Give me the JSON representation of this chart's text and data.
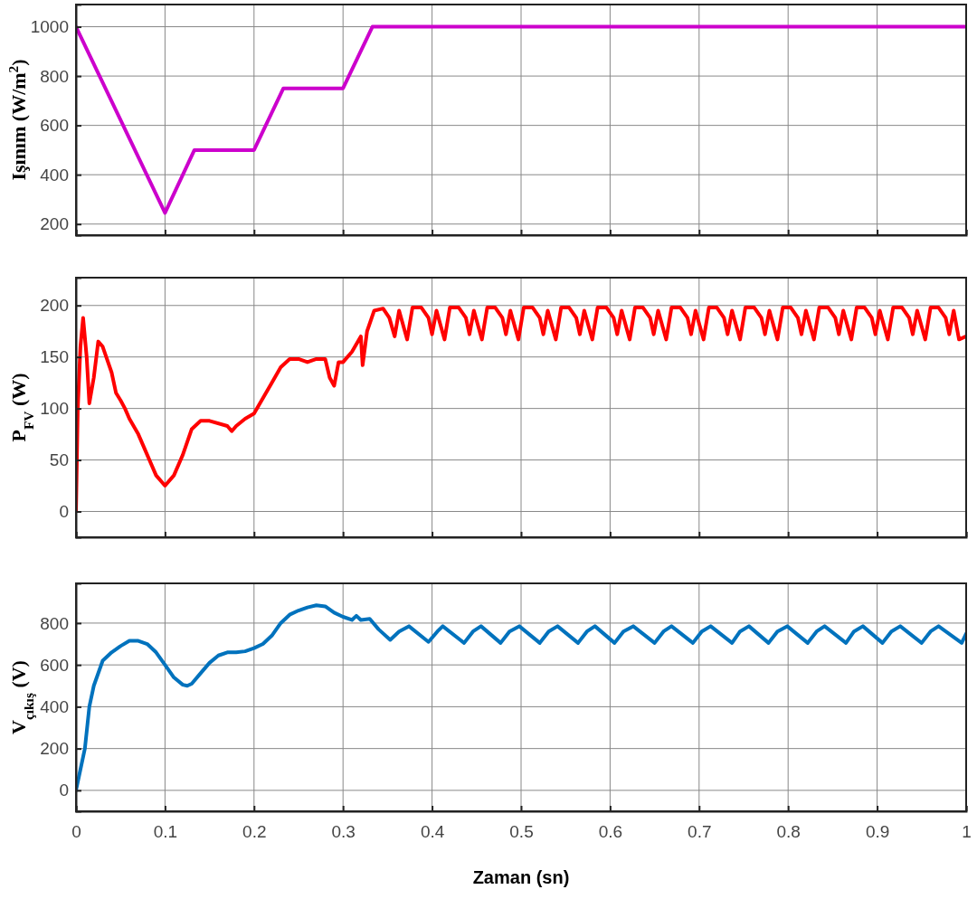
{
  "chart_data": [
    {
      "type": "line",
      "ylabel": "Işınım (W/m$^{2}$)",
      "xlim": [
        0,
        1
      ],
      "xticks": [
        0,
        0.1,
        0.2,
        0.3,
        0.4,
        0.5,
        0.6,
        0.7,
        0.8,
        0.9,
        1
      ],
      "ylim": [
        155,
        1090
      ],
      "yticks": [
        200,
        400,
        600,
        800,
        1000
      ],
      "grid": true,
      "tick_labels": "y",
      "series": [
        {
          "color": "#cc00cc",
          "x": [
            0,
            0.1,
            0.133,
            0.2,
            0.233,
            0.3,
            0.333,
            1
          ],
          "values": [
            1000,
            245,
            500,
            500,
            750,
            750,
            1000,
            1000
          ]
        }
      ]
    },
    {
      "type": "line",
      "ylabel": "P$_{FV}$ (W)",
      "xlim": [
        0,
        1
      ],
      "xticks": [
        0,
        0.1,
        0.2,
        0.3,
        0.4,
        0.5,
        0.6,
        0.7,
        0.8,
        0.9,
        1
      ],
      "ylim": [
        -25,
        227
      ],
      "yticks": [
        0,
        50,
        100,
        150,
        200
      ],
      "grid": true,
      "tick_labels": "y",
      "series": [
        {
          "color": "#ff0000",
          "x": [
            0,
            0.002,
            0.005,
            0.008,
            0.012,
            0.015,
            0.02,
            0.025,
            0.03,
            0.04,
            0.045,
            0.05,
            0.055,
            0.06,
            0.07,
            0.08,
            0.09,
            0.1,
            0.11,
            0.12,
            0.13,
            0.14,
            0.15,
            0.17,
            0.175,
            0.18,
            0.19,
            0.2,
            0.21,
            0.22,
            0.23,
            0.24,
            0.25,
            0.26,
            0.27,
            0.28,
            0.285,
            0.29,
            0.295,
            0.3,
            0.31,
            0.32,
            0.322,
            0.327,
            0.335,
            0.345,
            0.352,
            0.358,
            0.363,
            0.372,
            0.378,
            0.388,
            0.396,
            0.4,
            0.405,
            0.414,
            0.42,
            0.43,
            0.438,
            0.442,
            0.447,
            0.456,
            0.462,
            0.471,
            0.479,
            0.483,
            0.488,
            0.497,
            0.503,
            0.513,
            0.521,
            0.525,
            0.53,
            0.539,
            0.545,
            0.554,
            0.562,
            0.566,
            0.571,
            0.58,
            0.586,
            0.596,
            0.604,
            0.608,
            0.613,
            0.622,
            0.628,
            0.637,
            0.645,
            0.649,
            0.654,
            0.663,
            0.669,
            0.679,
            0.687,
            0.691,
            0.696,
            0.705,
            0.711,
            0.72,
            0.728,
            0.732,
            0.737,
            0.746,
            0.752,
            0.762,
            0.77,
            0.774,
            0.779,
            0.788,
            0.794,
            0.803,
            0.811,
            0.815,
            0.82,
            0.829,
            0.835,
            0.845,
            0.853,
            0.857,
            0.862,
            0.871,
            0.877,
            0.886,
            0.894,
            0.898,
            0.903,
            0.912,
            0.918,
            0.928,
            0.936,
            0.94,
            0.945,
            0.954,
            0.96,
            0.969,
            0.977,
            0.981,
            0.986,
            0.992,
            1
          ],
          "values": [
            0,
            100,
            160,
            188,
            150,
            105,
            130,
            165,
            160,
            135,
            115,
            108,
            100,
            90,
            75,
            55,
            35,
            25,
            35,
            55,
            80,
            88,
            88,
            83,
            78,
            83,
            90,
            95,
            110,
            125,
            140,
            148,
            148,
            145,
            148,
            148,
            130,
            122,
            145,
            145,
            155,
            170,
            142,
            175,
            195,
            197,
            188,
            170,
            195,
            167,
            198,
            198,
            188,
            172,
            195,
            167,
            198,
            198,
            188,
            172,
            195,
            167,
            198,
            198,
            188,
            172,
            195,
            167,
            198,
            198,
            188,
            172,
            195,
            167,
            198,
            198,
            188,
            172,
            195,
            167,
            198,
            198,
            188,
            172,
            195,
            167,
            198,
            198,
            188,
            172,
            195,
            167,
            198,
            198,
            188,
            172,
            195,
            167,
            198,
            198,
            188,
            172,
            195,
            167,
            198,
            198,
            188,
            172,
            195,
            167,
            198,
            198,
            188,
            172,
            195,
            167,
            198,
            198,
            188,
            172,
            195,
            167,
            198,
            198,
            188,
            172,
            195,
            167,
            198,
            198,
            188,
            172,
            195,
            167,
            198,
            198,
            188,
            172,
            195,
            167,
            170
          ]
        }
      ]
    },
    {
      "type": "line",
      "ylabel": "V$_{çıkış}$ (V)",
      "xlabel": "Zaman (sn)",
      "xlim": [
        0,
        1
      ],
      "xticks": [
        0,
        0.1,
        0.2,
        0.3,
        0.4,
        0.5,
        0.6,
        0.7,
        0.8,
        0.9,
        1
      ],
      "ylim": [
        -100,
        990
      ],
      "yticks": [
        0,
        200,
        400,
        600,
        800
      ],
      "grid": true,
      "series": [
        {
          "color": "#0072bd",
          "x": [
            0,
            0.005,
            0.01,
            0.015,
            0.02,
            0.03,
            0.04,
            0.05,
            0.06,
            0.07,
            0.08,
            0.09,
            0.1,
            0.11,
            0.12,
            0.125,
            0.13,
            0.14,
            0.15,
            0.16,
            0.17,
            0.18,
            0.19,
            0.2,
            0.21,
            0.22,
            0.23,
            0.24,
            0.25,
            0.26,
            0.27,
            0.28,
            0.29,
            0.3,
            0.31,
            0.315,
            0.32,
            0.33,
            0.34,
            0.353,
            0.363,
            0.374,
            0.396,
            0.406,
            0.412,
            0.436,
            0.446,
            0.455,
            0.477,
            0.487,
            0.498,
            0.521,
            0.531,
            0.541,
            0.564,
            0.574,
            0.583,
            0.605,
            0.615,
            0.626,
            0.65,
            0.66,
            0.669,
            0.693,
            0.703,
            0.713,
            0.737,
            0.746,
            0.756,
            0.778,
            0.788,
            0.799,
            0.822,
            0.832,
            0.841,
            0.865,
            0.874,
            0.884,
            0.906,
            0.916,
            0.926,
            0.95,
            0.96,
            0.969,
            0.995,
            1
          ],
          "values": [
            0,
            100,
            200,
            400,
            500,
            620,
            660,
            690,
            715,
            715,
            700,
            660,
            600,
            540,
            505,
            500,
            510,
            560,
            610,
            645,
            660,
            660,
            665,
            680,
            700,
            740,
            800,
            840,
            860,
            875,
            885,
            880,
            850,
            830,
            815,
            835,
            815,
            820,
            770,
            720,
            760,
            785,
            710,
            760,
            785,
            705,
            760,
            785,
            705,
            760,
            785,
            705,
            760,
            785,
            705,
            760,
            785,
            705,
            760,
            785,
            705,
            760,
            785,
            705,
            760,
            785,
            705,
            760,
            785,
            705,
            760,
            785,
            705,
            760,
            785,
            705,
            760,
            785,
            705,
            760,
            785,
            705,
            760,
            785,
            705,
            750
          ]
        }
      ]
    }
  ]
}
